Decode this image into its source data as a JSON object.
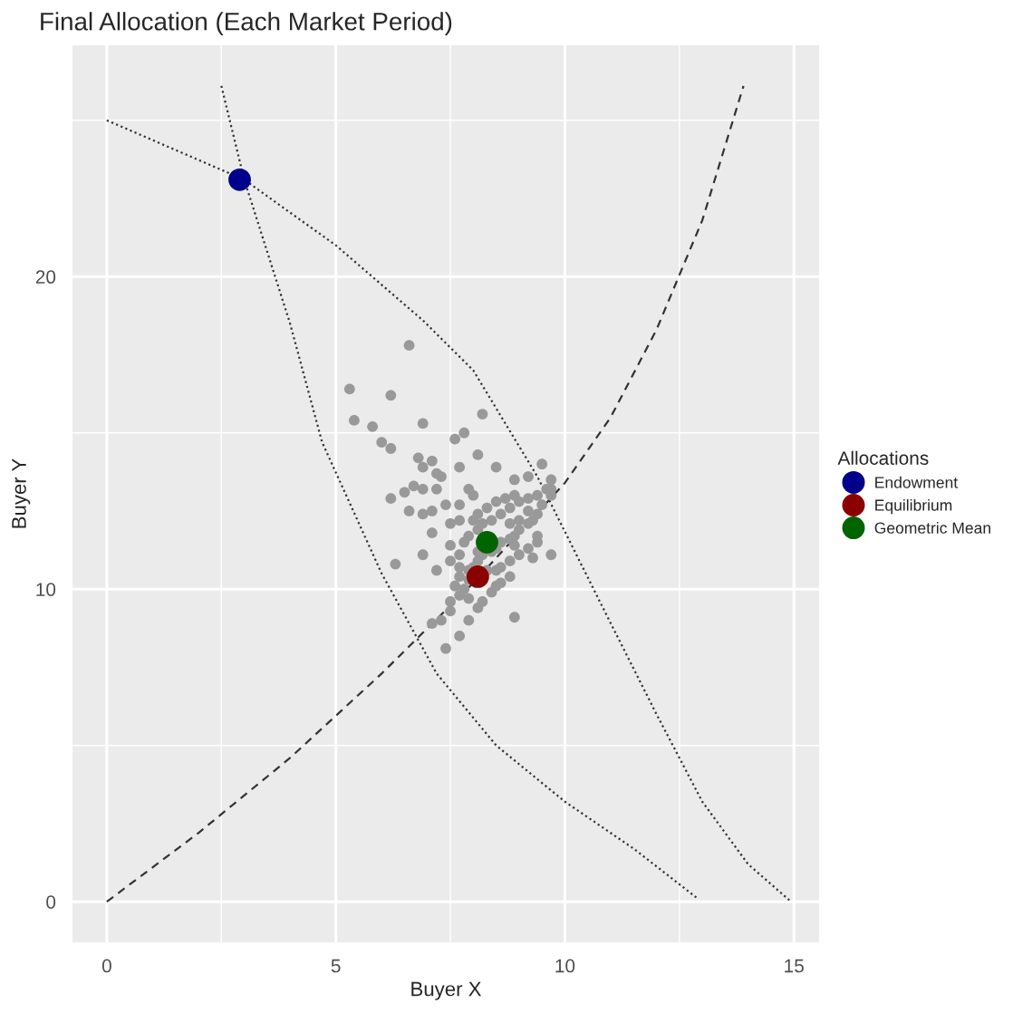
{
  "chart_data": {
    "type": "scatter",
    "title": "Final Allocation (Each Market Period)",
    "xlabel": "Buyer X",
    "ylabel": "Buyer Y",
    "legend_title": "Allocations",
    "legend": "right",
    "grid": true,
    "xlim": [
      -0.75,
      15.55
    ],
    "ylim": [
      -1.3,
      27.4
    ],
    "xticks": [
      0,
      5,
      10,
      15
    ],
    "yticks": [
      0,
      10,
      20
    ],
    "series": [
      {
        "type": "line",
        "line_style": "dotted",
        "color": "#333333",
        "x": [
          0,
          3,
          5,
          6.9,
          8,
          9.4,
          10.9,
          12,
          13,
          14,
          14.9
        ],
        "values": [
          25,
          23.1,
          21,
          18.6,
          17,
          13.6,
          9.2,
          6,
          3.2,
          1.2,
          0.05
        ]
      },
      {
        "type": "line",
        "line_style": "dotted",
        "color": "#333333",
        "x": [
          2.5,
          3,
          4,
          4.7,
          6,
          7.2,
          8.5,
          10,
          11.5,
          12.9
        ],
        "values": [
          26.1,
          23.1,
          18.5,
          14.7,
          10.5,
          7.3,
          5,
          3.2,
          1.7,
          0.1
        ]
      },
      {
        "type": "line",
        "line_style": "dashed",
        "color": "#333333",
        "x": [
          0,
          2,
          4,
          6,
          8,
          10,
          11,
          12,
          13,
          13.9
        ],
        "values": [
          0,
          2.2,
          4.6,
          7.3,
          10.2,
          13.4,
          15.5,
          18.3,
          21.8,
          26.1
        ]
      },
      {
        "marker": "circle",
        "color": "#999999",
        "x": [
          6.6,
          5.3,
          6.2,
          5.4,
          5.8,
          6.9,
          8.2,
          7.8,
          7.6,
          6.0,
          6.2,
          8.1,
          6.8,
          7.1,
          7.7,
          8.5,
          6.9,
          7.2,
          7.3,
          7.2,
          6.9,
          6.7,
          6.5,
          6.2,
          6.6,
          6.9,
          7.1,
          7.4,
          7.7,
          7.9,
          8.0,
          9.5,
          9.7,
          8.9,
          9.2,
          6.3,
          6.9,
          7.2,
          7.1,
          7.5,
          8.9,
          7.7,
          7.4,
          7.1,
          7.9,
          9.7,
          9.4,
          9.3,
          7.3,
          7.5,
          7.5,
          7.7,
          7.8,
          7.6,
          7.9,
          8.1,
          8.2,
          8.4,
          8.5,
          8.6,
          8.8,
          7.7,
          7.9,
          8.0,
          8.1,
          8.2,
          8.4,
          8.5,
          8.6,
          8.8,
          8.9,
          9.0,
          9.2,
          9.3,
          9.4,
          9.5,
          9.7,
          9.7,
          9.6,
          9.4,
          9.2,
          9.0,
          8.8,
          8.6,
          8.4,
          8.2,
          8.1,
          7.9,
          7.8,
          7.7,
          7.5,
          7.7,
          7.9,
          8.6,
          8.8,
          9.0,
          9.2,
          9.4,
          9.2,
          8.9,
          8.7,
          8.5,
          8.3,
          8.1,
          8.0,
          7.7,
          7.5,
          8.8,
          9.0,
          8.1,
          8.9,
          8.3,
          8.5
        ],
        "values": [
          17.8,
          16.4,
          16.2,
          15.4,
          15.2,
          15.3,
          15.6,
          15.0,
          14.8,
          14.7,
          14.5,
          14.3,
          14.2,
          14.1,
          13.9,
          13.9,
          13.9,
          13.7,
          13.6,
          13.2,
          13.2,
          13.3,
          13.1,
          12.9,
          12.5,
          12.4,
          12.5,
          12.7,
          12.7,
          13.2,
          13.0,
          14.0,
          13.5,
          13.5,
          13.6,
          10.8,
          11.1,
          10.6,
          11.8,
          11.4,
          9.1,
          8.5,
          8.1,
          8.9,
          9.0,
          11.1,
          11.5,
          11.0,
          9.0,
          9.3,
          9.6,
          9.8,
          10.0,
          10.1,
          9.7,
          9.4,
          9.6,
          9.9,
          10.1,
          10.2,
          10.4,
          10.4,
          10.6,
          10.7,
          10.9,
          11.1,
          11.2,
          11.3,
          11.5,
          11.6,
          11.7,
          11.9,
          12.1,
          12.2,
          12.4,
          12.7,
          13.0,
          13.2,
          13.2,
          13.0,
          12.9,
          12.8,
          12.6,
          12.4,
          12.2,
          12.1,
          11.9,
          11.7,
          11.5,
          11.1,
          10.9,
          10.7,
          10.3,
          10.7,
          10.9,
          11.1,
          11.3,
          11.7,
          12.5,
          13.0,
          12.9,
          12.8,
          12.6,
          12.4,
          12.2,
          12.2,
          12.1,
          12.1,
          12.2,
          11.2,
          11.4,
          10.6,
          10.6
        ]
      },
      {
        "marker": "circle",
        "name": "Endowment",
        "color": "#00008b",
        "x": [
          2.9
        ],
        "values": [
          23.1
        ]
      },
      {
        "marker": "circle",
        "name": "Equilibrium",
        "color": "#8b0000",
        "x": [
          8.1
        ],
        "values": [
          10.4
        ]
      },
      {
        "marker": "circle",
        "name": "Geometric Mean",
        "color": "#006400",
        "x": [
          8.3
        ],
        "values": [
          11.5
        ]
      }
    ]
  }
}
